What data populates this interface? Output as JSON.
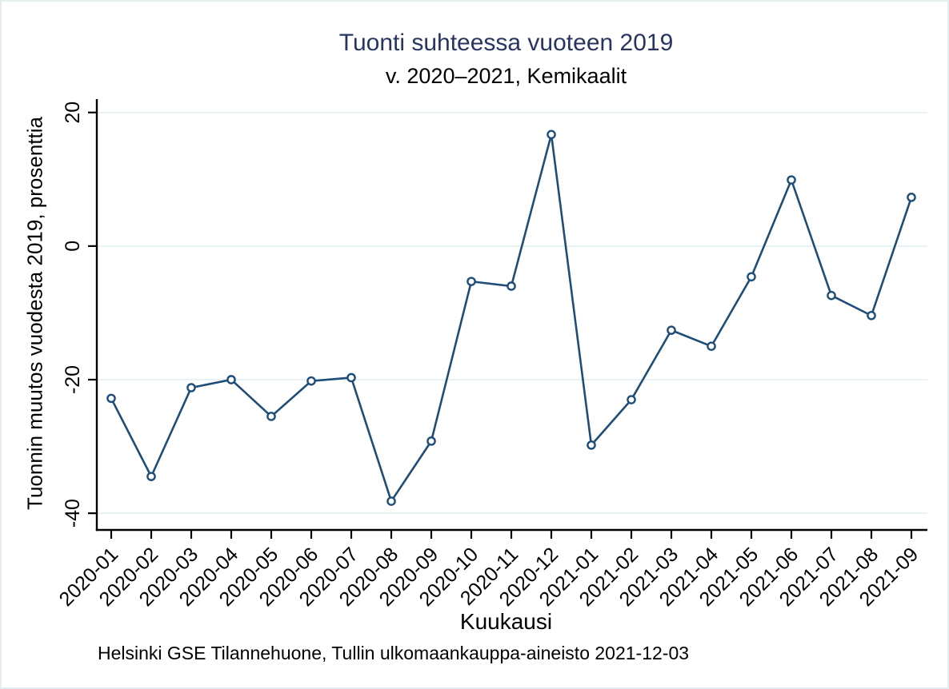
{
  "colors": {
    "title": "#283561",
    "line": "#1e4e78",
    "marker_fill": "#ffffff",
    "grid": "#e8f1f3",
    "axis": "#000000",
    "text": "#000000",
    "figure_border": "#e3edf0",
    "background": "#ffffff"
  },
  "chart_data": {
    "type": "line",
    "title": "Tuonti suhteessa vuoteen 2019",
    "subtitle": "v. 2020–2021, Kemikaalit",
    "xlabel": "Kuukausi",
    "ylabel": "Tuonnin muutos vuodesta 2019, prosenttia",
    "note": "Helsinki GSE Tilannehuone, Tullin ulkomaankauppa-aineisto 2021-12-03",
    "x": [
      "2020-01",
      "2020-02",
      "2020-03",
      "2020-04",
      "2020-05",
      "2020-06",
      "2020-07",
      "2020-08",
      "2020-09",
      "2020-10",
      "2020-11",
      "2020-12",
      "2021-01",
      "2021-02",
      "2021-03",
      "2021-04",
      "2021-05",
      "2021-06",
      "2021-07",
      "2021-08",
      "2021-09"
    ],
    "values": [
      -22.8,
      -34.5,
      -21.2,
      -20.0,
      -25.5,
      -20.2,
      -19.7,
      -38.2,
      -29.2,
      -5.3,
      -6.0,
      16.7,
      -29.8,
      -23.0,
      -12.6,
      -15.0,
      -4.6,
      9.9,
      -7.4,
      -10.4,
      7.3
    ],
    "series_name": "Kemikaalit",
    "yticks": [
      20,
      0,
      -20,
      -40
    ],
    "ylim": [
      -42.5,
      22
    ],
    "grid": "horizontal-only",
    "legend": "none",
    "marker": "open-circle",
    "x_tick_angle": -45,
    "y_tick_angle": -90
  }
}
